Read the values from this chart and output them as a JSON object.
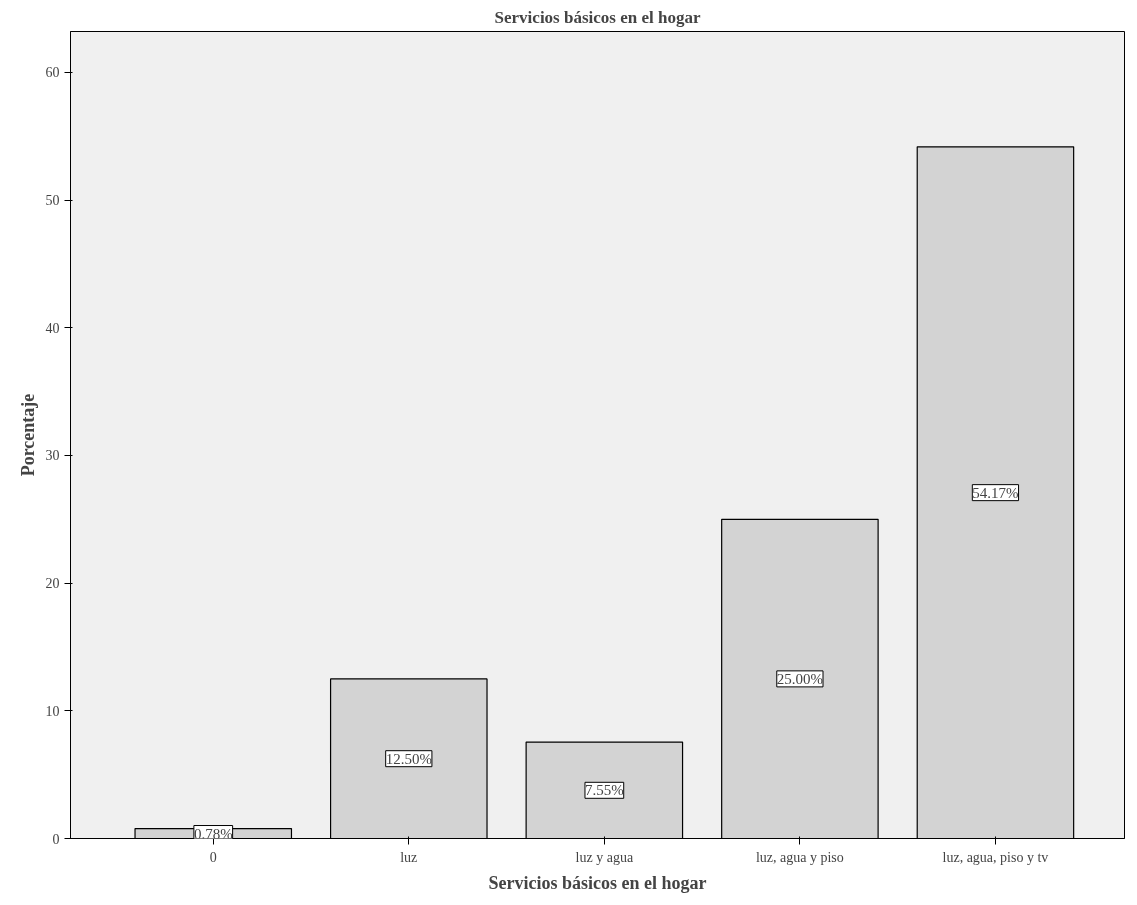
{
  "chart_data": {
    "type": "bar",
    "title": "Servicios básicos en el hogar",
    "xlabel": "Servicios básicos en el hogar",
    "ylabel": "Porcentaje",
    "categories": [
      "0",
      "luz",
      "luz y agua",
      "luz, agua y piso",
      "luz, agua, piso y tv"
    ],
    "values": [
      0.78,
      12.5,
      7.55,
      25.0,
      54.17
    ],
    "value_labels": [
      "0.78%",
      "12.50%",
      "7.55%",
      "25.00%",
      "54.17%"
    ],
    "color": "#d3d3d3",
    "ylim": [
      0,
      63.2
    ],
    "yticks": [
      0,
      10,
      20,
      30,
      40,
      50,
      60
    ],
    "grid": false
  }
}
